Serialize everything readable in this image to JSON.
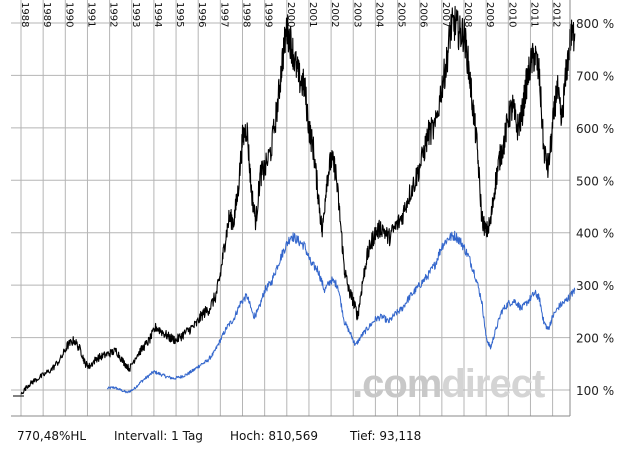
{
  "chart_data": {
    "type": "line",
    "title": "",
    "xlabel": "",
    "ylabel": "",
    "x_years": [
      "1988",
      "1989",
      "1990",
      "1991",
      "1992",
      "1993",
      "1994",
      "1995",
      "1996",
      "1997",
      "1998",
      "1999",
      "2000",
      "2001",
      "2002",
      "2003",
      "2004",
      "2005",
      "2006",
      "2007",
      "2008",
      "2009",
      "2010",
      "2011",
      "2012"
    ],
    "y_ticks": [
      "100 %",
      "200 %",
      "300 %",
      "400 %",
      "500 %",
      "600 %",
      "700 %",
      "800 %"
    ],
    "ylim": [
      75,
      815
    ],
    "xlim": [
      1987.9,
      2013.05
    ],
    "grid": true,
    "series": [
      {
        "name": "black",
        "color": "#000000",
        "points": [
          [
            1988.0,
            92
          ],
          [
            1988.3,
            108
          ],
          [
            1988.6,
            118
          ],
          [
            1989.0,
            128
          ],
          [
            1989.4,
            140
          ],
          [
            1989.8,
            160
          ],
          [
            1990.1,
            185
          ],
          [
            1990.4,
            195
          ],
          [
            1990.7,
            175
          ],
          [
            1990.9,
            150
          ],
          [
            1991.1,
            145
          ],
          [
            1991.4,
            160
          ],
          [
            1991.7,
            165
          ],
          [
            1992.0,
            170
          ],
          [
            1992.3,
            175
          ],
          [
            1992.6,
            155
          ],
          [
            1992.9,
            140
          ],
          [
            1993.2,
            165
          ],
          [
            1993.5,
            180
          ],
          [
            1993.8,
            195
          ],
          [
            1994.1,
            220
          ],
          [
            1994.4,
            210
          ],
          [
            1994.7,
            200
          ],
          [
            1995.0,
            195
          ],
          [
            1995.3,
            205
          ],
          [
            1995.6,
            215
          ],
          [
            1995.9,
            225
          ],
          [
            1996.2,
            245
          ],
          [
            1996.5,
            255
          ],
          [
            1996.8,
            280
          ],
          [
            1997.0,
            320
          ],
          [
            1997.2,
            380
          ],
          [
            1997.4,
            430
          ],
          [
            1997.6,
            420
          ],
          [
            1997.8,
            480
          ],
          [
            1998.0,
            580
          ],
          [
            1998.2,
            600
          ],
          [
            1998.4,
            480
          ],
          [
            1998.6,
            420
          ],
          [
            1998.8,
            510
          ],
          [
            1999.0,
            520
          ],
          [
            1999.3,
            560
          ],
          [
            1999.6,
            650
          ],
          [
            1999.8,
            730
          ],
          [
            2000.0,
            790
          ],
          [
            2000.2,
            760
          ],
          [
            2000.4,
            720
          ],
          [
            2000.6,
            690
          ],
          [
            2000.8,
            680
          ],
          [
            2001.0,
            600
          ],
          [
            2001.2,
            560
          ],
          [
            2001.4,
            480
          ],
          [
            2001.6,
            400
          ],
          [
            2001.8,
            500
          ],
          [
            2002.0,
            540
          ],
          [
            2002.2,
            520
          ],
          [
            2002.4,
            430
          ],
          [
            2002.6,
            330
          ],
          [
            2002.8,
            290
          ],
          [
            2003.0,
            270
          ],
          [
            2003.2,
            240
          ],
          [
            2003.4,
            300
          ],
          [
            2003.6,
            350
          ],
          [
            2003.8,
            380
          ],
          [
            2004.0,
            400
          ],
          [
            2004.3,
            410
          ],
          [
            2004.6,
            390
          ],
          [
            2004.9,
            410
          ],
          [
            2005.2,
            430
          ],
          [
            2005.5,
            470
          ],
          [
            2005.8,
            500
          ],
          [
            2006.1,
            540
          ],
          [
            2006.4,
            590
          ],
          [
            2006.7,
            600
          ],
          [
            2007.0,
            680
          ],
          [
            2007.2,
            720
          ],
          [
            2007.4,
            790
          ],
          [
            2007.6,
            800
          ],
          [
            2007.8,
            780
          ],
          [
            2008.0,
            780
          ],
          [
            2008.2,
            720
          ],
          [
            2008.4,
            640
          ],
          [
            2008.6,
            560
          ],
          [
            2008.8,
            430
          ],
          [
            2009.0,
            400
          ],
          [
            2009.2,
            420
          ],
          [
            2009.4,
            490
          ],
          [
            2009.6,
            540
          ],
          [
            2009.8,
            570
          ],
          [
            2010.0,
            620
          ],
          [
            2010.2,
            640
          ],
          [
            2010.4,
            600
          ],
          [
            2010.6,
            620
          ],
          [
            2010.8,
            680
          ],
          [
            2011.0,
            720
          ],
          [
            2011.2,
            740
          ],
          [
            2011.4,
            700
          ],
          [
            2011.6,
            560
          ],
          [
            2011.8,
            520
          ],
          [
            2012.0,
            600
          ],
          [
            2012.2,
            680
          ],
          [
            2012.4,
            610
          ],
          [
            2012.6,
            700
          ],
          [
            2012.8,
            770
          ],
          [
            2013.0,
            780
          ]
        ]
      },
      {
        "name": "blue",
        "color": "#3366cc",
        "points": [
          [
            1991.9,
            103
          ],
          [
            1992.2,
            105
          ],
          [
            1992.5,
            100
          ],
          [
            1992.8,
            95
          ],
          [
            1993.1,
            102
          ],
          [
            1993.4,
            115
          ],
          [
            1993.7,
            125
          ],
          [
            1994.0,
            135
          ],
          [
            1994.3,
            130
          ],
          [
            1994.6,
            125
          ],
          [
            1994.9,
            122
          ],
          [
            1995.2,
            125
          ],
          [
            1995.5,
            130
          ],
          [
            1995.8,
            138
          ],
          [
            1996.1,
            148
          ],
          [
            1996.4,
            155
          ],
          [
            1996.7,
            170
          ],
          [
            1997.0,
            195
          ],
          [
            1997.3,
            220
          ],
          [
            1997.6,
            235
          ],
          [
            1997.9,
            265
          ],
          [
            1998.2,
            280
          ],
          [
            1998.5,
            240
          ],
          [
            1998.7,
            250
          ],
          [
            1999.0,
            290
          ],
          [
            1999.3,
            305
          ],
          [
            1999.6,
            340
          ],
          [
            1999.9,
            370
          ],
          [
            2000.2,
            395
          ],
          [
            2000.5,
            385
          ],
          [
            2000.8,
            375
          ],
          [
            2001.1,
            340
          ],
          [
            2001.4,
            330
          ],
          [
            2001.7,
            290
          ],
          [
            2002.0,
            310
          ],
          [
            2002.3,
            300
          ],
          [
            2002.6,
            230
          ],
          [
            2002.9,
            205
          ],
          [
            2003.1,
            185
          ],
          [
            2003.4,
            205
          ],
          [
            2003.7,
            220
          ],
          [
            2004.0,
            235
          ],
          [
            2004.3,
            240
          ],
          [
            2004.6,
            230
          ],
          [
            2004.9,
            245
          ],
          [
            2005.2,
            255
          ],
          [
            2005.5,
            275
          ],
          [
            2005.8,
            290
          ],
          [
            2006.1,
            305
          ],
          [
            2006.4,
            320
          ],
          [
            2006.7,
            340
          ],
          [
            2007.0,
            375
          ],
          [
            2007.3,
            390
          ],
          [
            2007.6,
            395
          ],
          [
            2007.9,
            380
          ],
          [
            2008.2,
            355
          ],
          [
            2008.5,
            320
          ],
          [
            2008.8,
            270
          ],
          [
            2009.0,
            200
          ],
          [
            2009.2,
            180
          ],
          [
            2009.4,
            210
          ],
          [
            2009.7,
            250
          ],
          [
            2010.0,
            265
          ],
          [
            2010.3,
            270
          ],
          [
            2010.6,
            255
          ],
          [
            2010.9,
            270
          ],
          [
            2011.2,
            285
          ],
          [
            2011.4,
            275
          ],
          [
            2011.6,
            230
          ],
          [
            2011.8,
            215
          ],
          [
            2012.0,
            240
          ],
          [
            2012.3,
            260
          ],
          [
            2012.6,
            270
          ],
          [
            2012.8,
            280
          ],
          [
            2013.0,
            290
          ]
        ]
      }
    ]
  },
  "footer": {
    "value": "770,48%HL",
    "interval": "Intervall: 1 Tag",
    "high": "Hoch:  810,569",
    "low": "Tief:  93,118"
  },
  "watermark": {
    "part1": ".com",
    "part2": "direct"
  }
}
